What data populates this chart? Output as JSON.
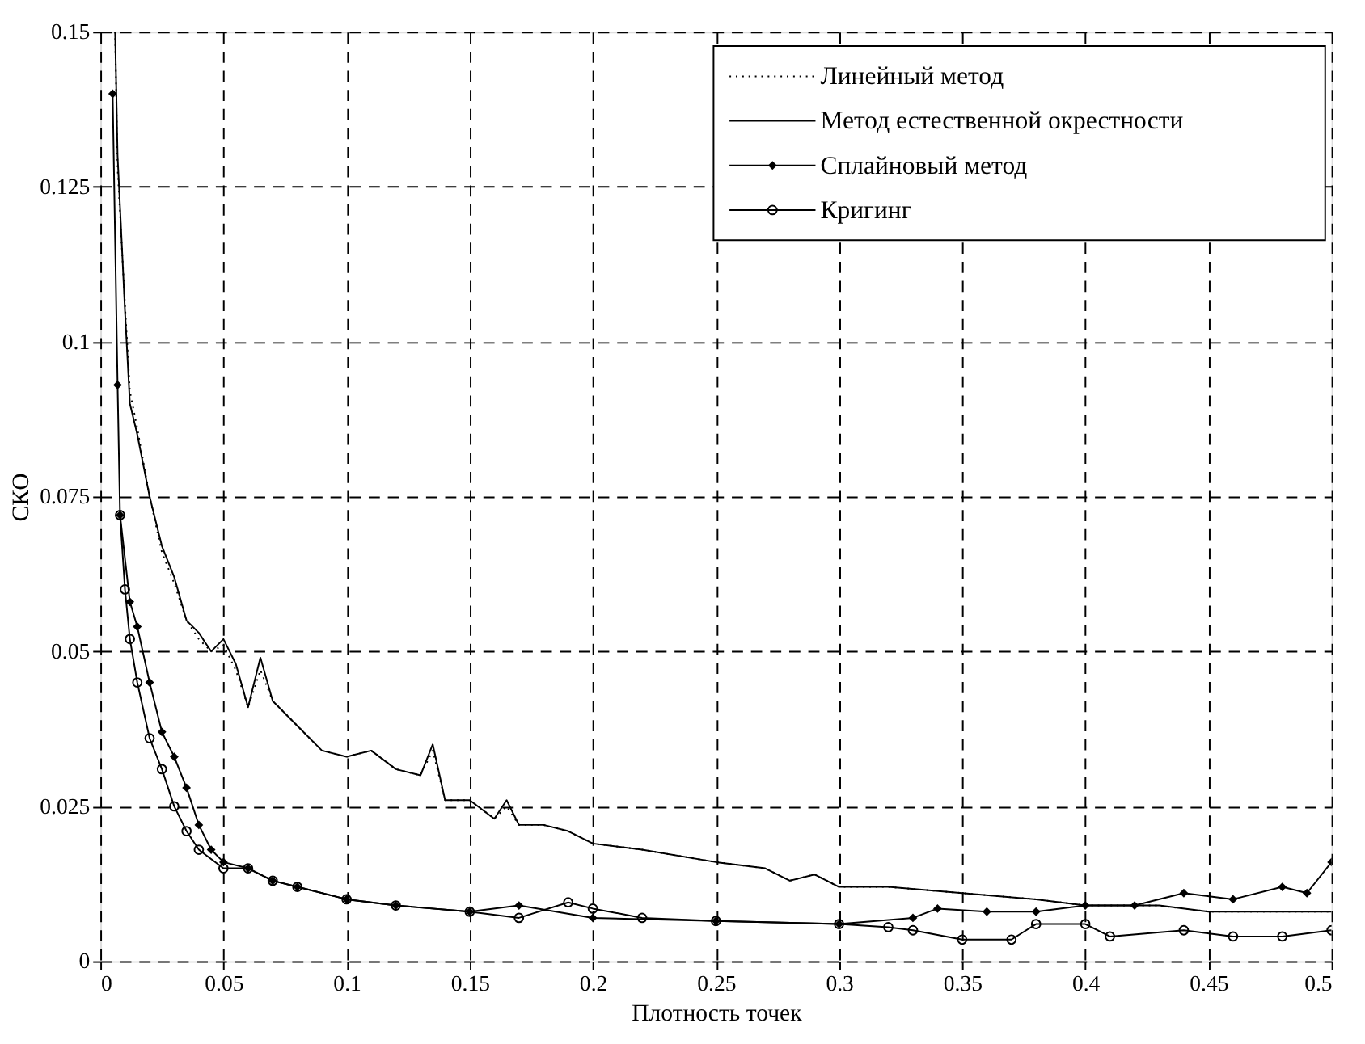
{
  "chart_data": {
    "type": "line",
    "xlabel": "Плотность точек",
    "ylabel": "СКО",
    "xlim": [
      0,
      0.5
    ],
    "ylim": [
      0,
      0.15
    ],
    "xticks": [
      0,
      0.05,
      0.1,
      0.15,
      0.2,
      0.25,
      0.3,
      0.35,
      0.4,
      0.45,
      0.5
    ],
    "yticks": [
      0,
      0.025,
      0.05,
      0.075,
      0.1,
      0.125,
      0.15
    ],
    "grid": true,
    "legend": "top right",
    "series": [
      {
        "name": "Линейный метод",
        "color": "#000000",
        "line_style": "dotted",
        "marker": "none",
        "x": [
          0.006,
          0.007,
          0.01,
          0.012,
          0.015,
          0.02,
          0.025,
          0.03,
          0.035,
          0.04,
          0.045,
          0.05,
          0.055,
          0.06,
          0.065,
          0.07,
          0.08,
          0.09,
          0.1,
          0.11,
          0.12,
          0.13,
          0.135,
          0.14,
          0.15,
          0.16,
          0.165,
          0.17,
          0.18,
          0.19,
          0.2,
          0.22,
          0.25,
          0.27,
          0.28,
          0.29,
          0.3,
          0.32,
          0.35,
          0.38,
          0.4,
          0.43,
          0.45,
          0.47,
          0.5
        ],
        "values": [
          0.15,
          0.128,
          0.106,
          0.092,
          0.086,
          0.075,
          0.066,
          0.061,
          0.055,
          0.052,
          0.05,
          0.051,
          0.047,
          0.041,
          0.047,
          0.042,
          0.038,
          0.034,
          0.033,
          0.034,
          0.031,
          0.03,
          0.034,
          0.026,
          0.026,
          0.023,
          0.025,
          0.022,
          0.022,
          0.021,
          0.019,
          0.018,
          0.016,
          0.015,
          0.013,
          0.014,
          0.012,
          0.012,
          0.011,
          0.01,
          0.009,
          0.009,
          0.008,
          0.008,
          0.008
        ]
      },
      {
        "name": "Метод естественной окрестности",
        "color": "#000000",
        "line_style": "solid",
        "marker": "none",
        "x": [
          0.006,
          0.007,
          0.01,
          0.012,
          0.015,
          0.02,
          0.025,
          0.03,
          0.035,
          0.04,
          0.045,
          0.05,
          0.055,
          0.06,
          0.065,
          0.07,
          0.08,
          0.09,
          0.1,
          0.11,
          0.12,
          0.13,
          0.135,
          0.14,
          0.15,
          0.16,
          0.165,
          0.17,
          0.18,
          0.19,
          0.2,
          0.22,
          0.25,
          0.27,
          0.28,
          0.29,
          0.3,
          0.32,
          0.35,
          0.38,
          0.4,
          0.43,
          0.45,
          0.47,
          0.5
        ],
        "values": [
          0.15,
          0.13,
          0.105,
          0.09,
          0.085,
          0.075,
          0.067,
          0.062,
          0.055,
          0.053,
          0.05,
          0.052,
          0.048,
          0.041,
          0.049,
          0.042,
          0.038,
          0.034,
          0.033,
          0.034,
          0.031,
          0.03,
          0.035,
          0.026,
          0.026,
          0.023,
          0.026,
          0.022,
          0.022,
          0.021,
          0.019,
          0.018,
          0.016,
          0.015,
          0.013,
          0.014,
          0.012,
          0.012,
          0.011,
          0.01,
          0.009,
          0.009,
          0.008,
          0.008,
          0.008
        ]
      },
      {
        "name": "Сплайновый метод",
        "color": "#000000",
        "line_style": "solid",
        "marker": "diamond",
        "x": [
          0.005,
          0.007,
          0.008,
          0.012,
          0.015,
          0.02,
          0.025,
          0.03,
          0.035,
          0.04,
          0.045,
          0.05,
          0.06,
          0.07,
          0.08,
          0.1,
          0.12,
          0.15,
          0.17,
          0.2,
          0.25,
          0.3,
          0.33,
          0.34,
          0.36,
          0.38,
          0.4,
          0.42,
          0.44,
          0.46,
          0.48,
          0.49,
          0.5
        ],
        "values": [
          0.14,
          0.093,
          0.072,
          0.058,
          0.054,
          0.045,
          0.037,
          0.033,
          0.028,
          0.022,
          0.018,
          0.016,
          0.015,
          0.013,
          0.012,
          0.01,
          0.009,
          0.008,
          0.009,
          0.007,
          0.0065,
          0.006,
          0.007,
          0.0085,
          0.008,
          0.008,
          0.009,
          0.009,
          0.011,
          0.01,
          0.012,
          0.011,
          0.016
        ]
      },
      {
        "name": "Кригинг",
        "color": "#000000",
        "line_style": "solid",
        "marker": "circle",
        "x": [
          0.008,
          0.01,
          0.012,
          0.015,
          0.02,
          0.025,
          0.03,
          0.035,
          0.04,
          0.05,
          0.06,
          0.07,
          0.08,
          0.1,
          0.12,
          0.15,
          0.17,
          0.19,
          0.2,
          0.22,
          0.25,
          0.3,
          0.32,
          0.33,
          0.35,
          0.37,
          0.38,
          0.4,
          0.41,
          0.44,
          0.46,
          0.48,
          0.5
        ],
        "values": [
          0.072,
          0.06,
          0.052,
          0.045,
          0.036,
          0.031,
          0.025,
          0.021,
          0.018,
          0.015,
          0.015,
          0.013,
          0.012,
          0.01,
          0.009,
          0.008,
          0.007,
          0.0095,
          0.0085,
          0.007,
          0.0065,
          0.006,
          0.0055,
          0.005,
          0.0035,
          0.0035,
          0.006,
          0.006,
          0.004,
          0.005,
          0.004,
          0.004,
          0.005
        ]
      }
    ]
  }
}
